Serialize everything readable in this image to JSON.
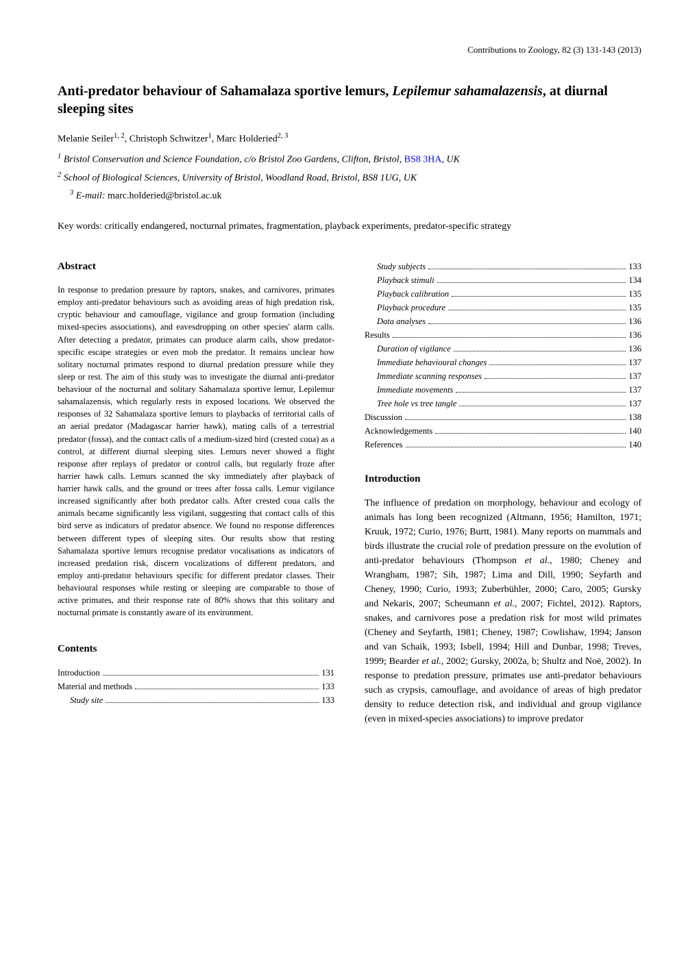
{
  "header": {
    "journal_line": "Contributions to Zoology, 82 (3) 131-143 (2013)"
  },
  "title": {
    "line1_prefix": "Anti-predator behaviour of Sahamalaza sportive lemurs, ",
    "line1_italic": "Lepilemur sahamalazensis",
    "line1_suffix": ", at",
    "line2": "diurnal sleeping sites"
  },
  "authors": "Melanie Seiler",
  "author_sup1": "1, 2",
  "author2": ", Christoph Schwitzer",
  "author_sup2": "1",
  "author3": ", Marc Holderied",
  "author_sup3": "2, 3",
  "affil1_sup": "1",
  "affil1": " Bristol Conservation and Science Foundation, c/o Bristol Zoo Gardens, Clifton, Bristol, ",
  "affil1_postcode": "BS8 3HA",
  "affil1_suffix": ", UK",
  "affil2_sup": "2",
  "affil2": " School of Biological Sciences, University of Bristol, Woodland Road, Bristol, BS8 1UG, UK",
  "email_sup": "3",
  "email_label": " E-mail: ",
  "email": "marc.holderied@bristol.ac.uk",
  "keywords": "Key words: critically endangered, nocturnal primates, fragmentation, playback experiments, predator-specific strategy",
  "abstract_heading": "Abstract",
  "abstract_text": "In response to predation pressure by raptors, snakes, and carnivores, primates employ anti-predator behaviours such as avoiding areas of high predation risk, cryptic behaviour and camouflage, vigilance and group formation (including mixed-species associations), and eavesdropping on other species' alarm calls. After detecting a predator, primates can produce alarm calls, show predator-specific escape strategies or even mob the predator. It remains unclear how solitary nocturnal primates respond to diurnal predation pressure while they sleep or rest. The aim of this study was to investigate the diurnal anti-predator behaviour of the nocturnal and solitary Sahamalaza sportive lemur, Lepilemur sahamalazensis, which regularly rests in exposed locations. We observed the responses of 32 Sahamalaza sportive lemurs to playbacks of territorial calls of an aerial predator (Madagascar harrier hawk), mating calls of a terrestrial predator (fossa), and the contact calls of a medium-sized bird (crested coua) as a control, at different diurnal sleeping sites. Lemurs never showed a flight response after replays of predator or control calls, but regularly froze after harrier hawk calls. Lemurs scanned the sky immediately after playback of harrier hawk calls, and the ground or trees after fossa calls. Lemur vigilance increased significantly after both predator calls. After crested coua calls the animals became significantly less vigilant, suggesting that contact calls of this bird serve as indicators of predator absence. We found no response differences between different types of sleeping sites. Our results show that resting Sahamalaza sportive lemurs recognise predator vocalisations as indicators of increased predation risk, discern vocalizations of different predators, and employ anti-predator behaviours specific for different predator classes. Their behavioural responses while resting or sleeping are comparable to those of active primates, and their response rate of 80% shows that this solitary and nocturnal primate is constantly aware of its environment.",
  "contents_heading": "Contents",
  "contents_left": [
    {
      "label": "Introduction",
      "page": "131",
      "indent": false,
      "italic": false
    },
    {
      "label": "Material and methods",
      "page": "133",
      "indent": false,
      "italic": false
    },
    {
      "label": "Study site",
      "page": "133",
      "indent": true,
      "italic": true
    }
  ],
  "contents_right": [
    {
      "label": "Study subjects",
      "page": "133",
      "indent": true,
      "italic": true
    },
    {
      "label": "Playback stimuli",
      "page": "134",
      "indent": true,
      "italic": true
    },
    {
      "label": "Playback calibration",
      "page": "135",
      "indent": true,
      "italic": true
    },
    {
      "label": "Playback procedure",
      "page": "135",
      "indent": true,
      "italic": true
    },
    {
      "label": "Data analyses",
      "page": "136",
      "indent": true,
      "italic": true
    },
    {
      "label": "Results",
      "page": "136",
      "indent": false,
      "italic": false
    },
    {
      "label": "Duration of vigilance",
      "page": "136",
      "indent": true,
      "italic": true
    },
    {
      "label": "Immediate behavioural changes",
      "page": "137",
      "indent": true,
      "italic": true
    },
    {
      "label": "Immediate scanning responses",
      "page": "137",
      "indent": true,
      "italic": true
    },
    {
      "label": "Immediate movements",
      "page": "137",
      "indent": true,
      "italic": true
    },
    {
      "label": "Tree hole vs tree tangle",
      "page": "137",
      "indent": true,
      "italic": true
    },
    {
      "label": "Discussion",
      "page": "138",
      "indent": false,
      "italic": false
    },
    {
      "label": "Acknowledgements",
      "page": "140",
      "indent": false,
      "italic": false
    },
    {
      "label": "References",
      "page": "140",
      "indent": false,
      "italic": false
    }
  ],
  "intro_heading": "Introduction",
  "intro_text": "The influence of predation on morphology, behaviour and ecology of animals has long been recognized (Altmann, 1956; Hamilton, 1971; Kruuk, 1972; Curio, 1976; Burtt, 1981). Many reports on mammals and birds illustrate the crucial role of predation pressure on the evolution of anti-predator behaviours (Thompson et al., 1980; Cheney and Wrangham, 1987; Sih, 1987; Lima and Dill, 1990; Seyfarth and Cheney, 1990; Curio, 1993; Zuberbühler, 2000; Caro, 2005; Gursky and Nekaris, 2007; Scheumann et al., 2007; Fichtel, 2012). Raptors, snakes, and carnivores pose a predation risk for most wild primates (Cheney and Seyfarth, 1981; Cheney, 1987; Cowlishaw, 1994; Janson and van Schaik, 1993; Isbell, 1994; Hill and Dunbar, 1998; Treves, 1999; Bearder et al., 2002; Gursky, 2002a, b; Shultz and Noë, 2002). In response to predation pressure, primates use anti-predator behaviours such as crypsis, camouflage, and avoidance of areas of high predator density to reduce detection risk, and individual and group vigilance (even in mixed-species associations) to improve predator"
}
